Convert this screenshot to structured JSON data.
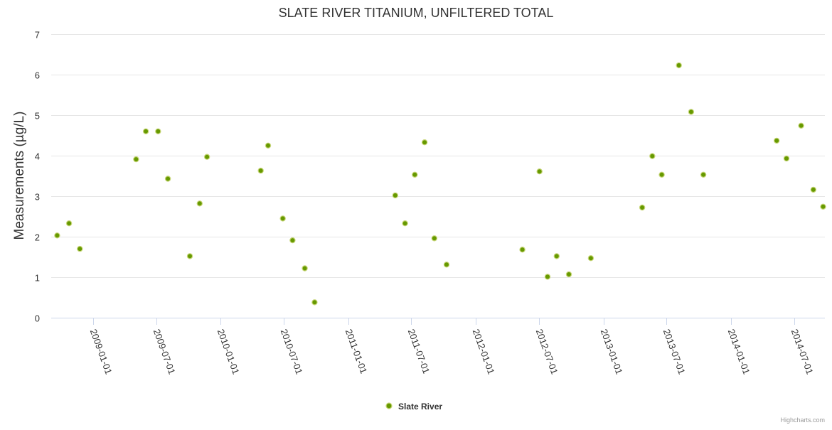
{
  "colors": {
    "marker_fill": "#669900",
    "marker_stroke": "#c8d67a",
    "grid": "#e6e6e6",
    "axis": "#ccd6eb"
  },
  "credits": "Highcharts.com",
  "chart_data": {
    "type": "scatter",
    "title": "SLATE RIVER TITANIUM, UNFILTERED TOTAL",
    "xlabel": "",
    "ylabel": "Measurements (µg/L)",
    "x_axis_type": "datetime",
    "xlim": [
      "2008-09-03",
      "2014-09-27"
    ],
    "ylim": [
      0,
      7
    ],
    "y_ticks": [
      0,
      1,
      2,
      3,
      4,
      5,
      6,
      7
    ],
    "x_ticks": [
      "2009-01-01",
      "2009-07-01",
      "2010-01-01",
      "2010-07-01",
      "2011-01-01",
      "2011-07-01",
      "2012-01-01",
      "2012-07-01",
      "2013-01-01",
      "2013-07-01",
      "2014-01-01",
      "2014-07-01"
    ],
    "grid": true,
    "legend_position": "bottom-center",
    "series": [
      {
        "name": "Slate River",
        "color": "#669900",
        "x": [
          "2008-09-20",
          "2008-10-24",
          "2008-11-24",
          "2009-05-04",
          "2009-06-01",
          "2009-07-06",
          "2009-08-03",
          "2009-10-05",
          "2009-11-02",
          "2009-11-23",
          "2010-04-26",
          "2010-05-17",
          "2010-06-28",
          "2010-07-26",
          "2010-08-30",
          "2010-09-27",
          "2011-05-16",
          "2011-06-13",
          "2011-07-11",
          "2011-08-08",
          "2011-09-05",
          "2011-10-10",
          "2012-05-14",
          "2012-07-02",
          "2012-07-25",
          "2012-08-20",
          "2012-09-24",
          "2012-11-26",
          "2013-04-22",
          "2013-05-21",
          "2013-06-17",
          "2013-08-05",
          "2013-09-09",
          "2013-10-14",
          "2014-05-12",
          "2014-06-09",
          "2014-07-21",
          "2014-08-25",
          "2014-09-22"
        ],
        "y": [
          2.03,
          2.33,
          1.7,
          3.91,
          4.6,
          4.6,
          3.43,
          1.52,
          2.82,
          3.97,
          3.63,
          4.25,
          2.45,
          1.91,
          1.22,
          0.38,
          3.02,
          2.33,
          3.53,
          4.33,
          1.96,
          1.31,
          1.68,
          3.61,
          1.01,
          1.52,
          1.07,
          1.47,
          2.72,
          3.99,
          3.53,
          6.23,
          5.08,
          3.53,
          4.37,
          3.93,
          4.74,
          3.16,
          2.74
        ]
      }
    ]
  }
}
